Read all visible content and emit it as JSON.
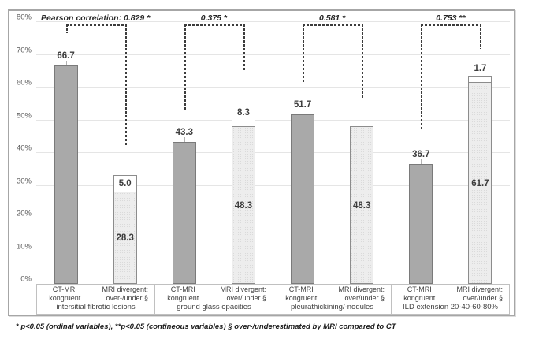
{
  "footnote": "* p<0.05 (ordinal variables), **p<0.05 (contineous variables) § over-/underestimated by MRI compared to CT",
  "colors": {
    "congruent_fill": "#a9a9a9",
    "congruent_border": "#7a7a7a",
    "divergent_fill": "#ededed",
    "divergent_border": "#8c8c8c",
    "over_fill": "#ffffff",
    "gridline": "#e5e5e5",
    "bracket": "#3c3c3c",
    "axis_border": "#c0c0c0"
  },
  "chart_data": {
    "type": "bar",
    "title": "",
    "xlabel": "",
    "ylabel": "",
    "ylim": [
      0,
      80
    ],
    "ytick_step": 10,
    "ytick_suffix": "%",
    "grid": true,
    "legend_position": "none",
    "value_format_decimals": 1,
    "groups": [
      {
        "label": "intersitial fibrotic lesions",
        "correlation": "Pearson correlation: 0.829 *",
        "congruent": {
          "label": "CT-MRI kongruent",
          "value": 66.7
        },
        "divergent": {
          "label_line1": "MRI divergent:",
          "label_line2": "over-/under §",
          "under": 28.3,
          "over": 5.0
        }
      },
      {
        "label": "ground glass opacities",
        "correlation": "0.375 *",
        "congruent": {
          "label": "CT-MRI kongruent",
          "value": 43.3
        },
        "divergent": {
          "label_line1": "MRI divergent:",
          "label_line2": "over/under §",
          "under": 48.3,
          "over": 8.3
        }
      },
      {
        "label": "pleurathickining/-nodules",
        "correlation": "0.581 *",
        "congruent": {
          "label": "CT-MRI kongruent",
          "value": 51.7
        },
        "divergent": {
          "label_line1": "MRI divergent:",
          "label_line2": "over/under §",
          "under": 48.3,
          "over": null
        }
      },
      {
        "label": "ILD extension 20-40-60-80%",
        "correlation": "0.753 **",
        "congruent": {
          "label": "CT-MRI kongruent",
          "value": 36.7
        },
        "divergent": {
          "label_line1": "MRI divergent:",
          "label_line2": "over/under §",
          "under": 61.7,
          "over": 1.7
        }
      }
    ]
  }
}
